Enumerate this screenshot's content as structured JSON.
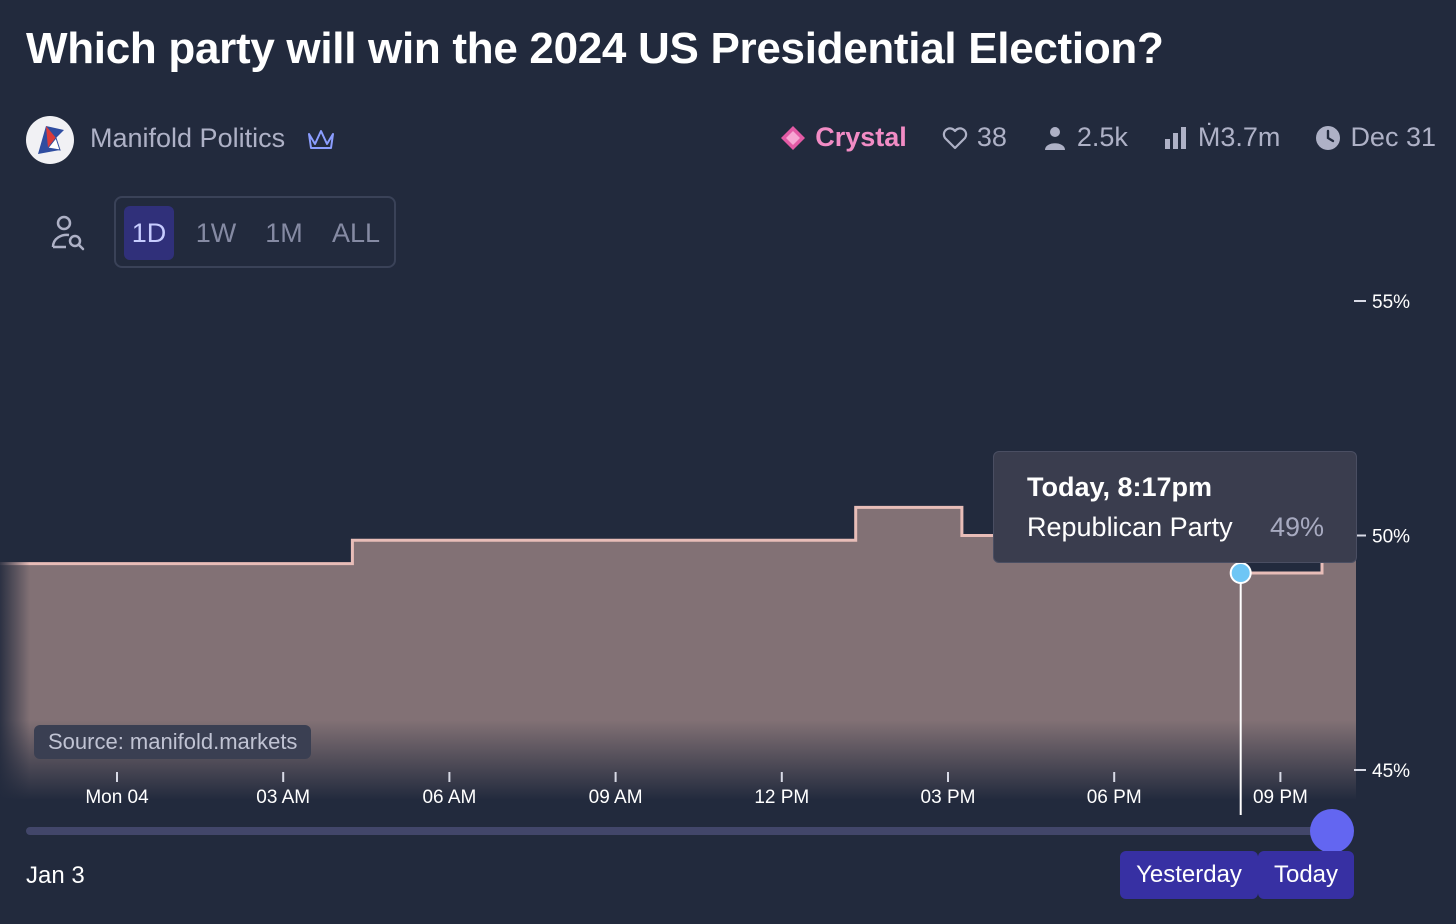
{
  "question_title": "Which party will win the 2024 US Presidential Election?",
  "author": {
    "name": "Manifold Politics"
  },
  "stats": {
    "tier": "Crystal",
    "likes": "38",
    "traders": "2.5k",
    "volume": "Ṁ3.7m",
    "close_date": "Dec 31"
  },
  "periods": {
    "labels": [
      "1D",
      "1W",
      "1M",
      "ALL"
    ],
    "active": "1D"
  },
  "tooltip": {
    "time": "Today, 8:17pm",
    "series": "Republican Party",
    "value": "49%"
  },
  "source_label": "Source: manifold.markets",
  "range": {
    "start_label": "Jan 3",
    "yesterday_label": "Yesterday",
    "today_label": "Today"
  },
  "colors": {
    "accent": "#6366f1",
    "crystal": "#f28cc5",
    "line": "#e8bdb8",
    "fill": "#827175",
    "marker": "#6ec6f5"
  },
  "icons": [
    "user-search-icon",
    "heart-icon",
    "user-icon",
    "bar-chart-icon",
    "clock-icon",
    "crystal-icon",
    "crown-icon"
  ],
  "chart_data": {
    "type": "area",
    "step": true,
    "series": [
      {
        "name": "Republican Party",
        "x": [
          "00:00",
          "01:40",
          "04:15",
          "08:00",
          "12:15",
          "13:20",
          "15:15",
          "20:17",
          "21:45"
        ],
        "values": [
          49.4,
          49.4,
          49.9,
          49.9,
          49.9,
          50.6,
          50.0,
          49.2,
          49.9
        ]
      }
    ],
    "x_ticks": [
      "Mon 04",
      "03 AM",
      "06 AM",
      "09 AM",
      "12 PM",
      "03 PM",
      "06 PM",
      "09 PM"
    ],
    "y_ticks": [
      "55%",
      "50%",
      "45%"
    ],
    "ylim": [
      45,
      55
    ],
    "highlight": {
      "x": "20:17",
      "value": 49.2
    }
  }
}
